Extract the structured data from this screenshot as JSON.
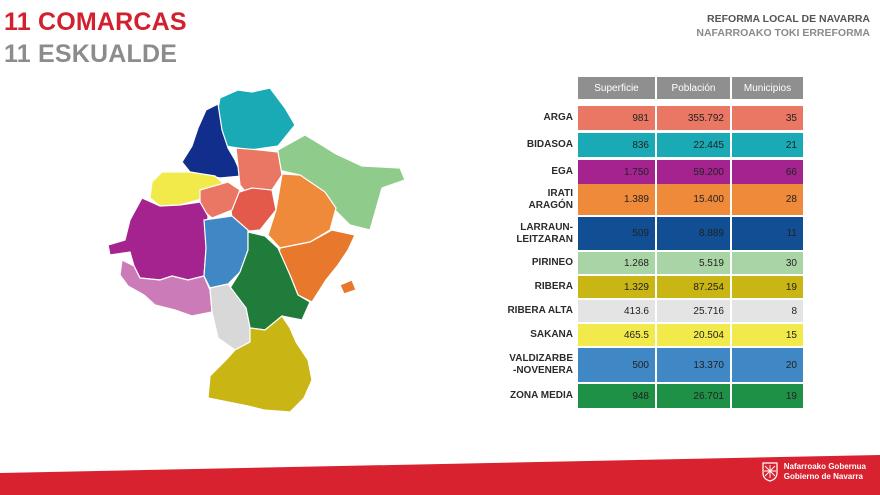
{
  "title": {
    "line1": "11 COMARCAS",
    "line2": "11 ESKUALDE"
  },
  "header": {
    "line1": "REFORMA LOCAL DE NAVARRA",
    "line2": "NAFARROAKO TOKI ERREFORMA"
  },
  "table": {
    "columns": [
      "Superficie",
      "Población",
      "Municipios"
    ],
    "rows": [
      {
        "name": "ARGA",
        "superficie": "981",
        "poblacion": "355.792",
        "municipios": "35",
        "color": "#ea7764"
      },
      {
        "name": "BIDASOA",
        "superficie": "836",
        "poblacion": "22.445",
        "municipios": "21",
        "color": "#19aab6"
      },
      {
        "name": "EGA",
        "superficie": "1.750",
        "poblacion": "59.200",
        "municipios": "66",
        "color": "#a4238f"
      },
      {
        "name": "IRATI\nARAGÓN",
        "superficie": "1.389",
        "poblacion": "15.400",
        "municipios": "28",
        "color": "#ef8a3a"
      },
      {
        "name": "LARRAUN-\nLEITZARAN",
        "superficie": "509",
        "poblacion": "8.889",
        "municipios": "11",
        "color": "#114e93"
      },
      {
        "name": "PIRINEO",
        "superficie": "1.268",
        "poblacion": "5.519",
        "municipios": "30",
        "color": "#a9d5a6"
      },
      {
        "name": "RIBERA",
        "superficie": "1.329",
        "poblacion": "87.254",
        "municipios": "19",
        "color": "#c9b514"
      },
      {
        "name": "RIBERA ALTA",
        "superficie": "413.6",
        "poblacion": "25.716",
        "municipios": "8",
        "color": "#e4e4e4"
      },
      {
        "name": "SAKANA",
        "superficie": "465.5",
        "poblacion": "20.504",
        "municipios": "15",
        "color": "#f2e94a"
      },
      {
        "name": "VALDIZARBE\n-NOVENERA",
        "superficie": "500",
        "poblacion": "13.370",
        "municipios": "20",
        "color": "#3f87c5"
      },
      {
        "name": "ZONA MEDIA",
        "superficie": "948",
        "poblacion": "26.701",
        "municipios": "19",
        "color": "#1f9146"
      }
    ]
  },
  "map_colors": {
    "bidasoa": "#19aab6",
    "larraun": "#112e8c",
    "sakana": "#f2e94a",
    "arga": "#ea7764",
    "arga_dark": "#e35a4b",
    "pirineo": "#8fcb8a",
    "irati": "#ef8a3a",
    "irati_dark": "#e8792c",
    "ega": "#a4238f",
    "ega_light": "#cc7bb9",
    "valdizarbe": "#3f87c5",
    "zona_media": "#1f7c3a",
    "ribera_alta": "#d8d8d8",
    "ribera": "#c9b514"
  },
  "footer": {
    "logo_line1": "Nafarroako Gobernua",
    "logo_line2": "Gobierno de Navarra",
    "logo_icon": "navarra-shield-icon"
  }
}
